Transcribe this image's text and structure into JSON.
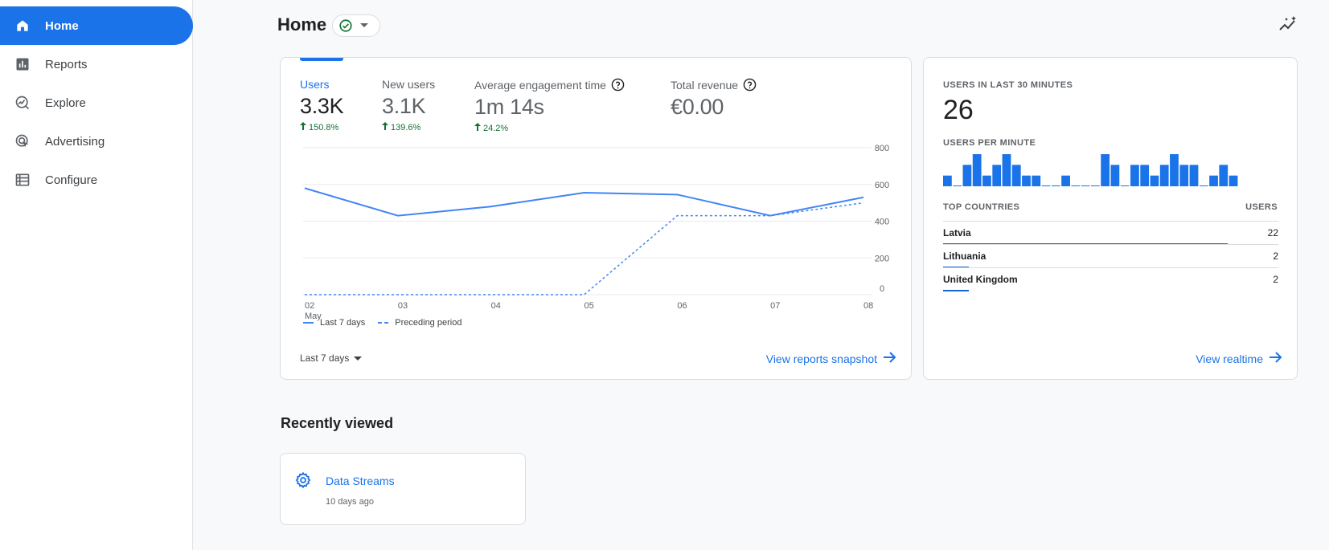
{
  "sidebar": {
    "items": [
      {
        "label": "Home",
        "icon": "home-icon",
        "active": true
      },
      {
        "label": "Reports",
        "icon": "bar-chart-icon",
        "active": false
      },
      {
        "label": "Explore",
        "icon": "explore-icon",
        "active": false
      },
      {
        "label": "Advertising",
        "icon": "advertising-icon",
        "active": false
      },
      {
        "label": "Configure",
        "icon": "configure-icon",
        "active": false
      }
    ]
  },
  "header": {
    "title": "Home",
    "status_icon": "check-circle-icon",
    "dropdown_icon": "caret-down-icon",
    "insights_icon": "insights-icon"
  },
  "overview": {
    "metrics": [
      {
        "label": "Users",
        "value": "3.3K",
        "change": "150.8%",
        "selected": true
      },
      {
        "label": "New users",
        "value": "3.1K",
        "change": "139.6%",
        "selected": false
      },
      {
        "label": "Average engagement time",
        "value": "1m 14s",
        "change": "24.2%",
        "help": true,
        "selected": false
      },
      {
        "label": "Total revenue",
        "value": "€0.00",
        "help": true,
        "selected": false
      }
    ],
    "legend": {
      "current": "Last 7 days",
      "previous": "Preceding period"
    },
    "date_range": "Last 7 days",
    "link": "View reports snapshot"
  },
  "chart_data": {
    "type": "line",
    "x": [
      "02",
      "03",
      "04",
      "05",
      "06",
      "07",
      "08"
    ],
    "x_sublabel": "May",
    "series": [
      {
        "name": "Last 7 days",
        "values": [
          580,
          430,
          480,
          555,
          545,
          430,
          530
        ]
      },
      {
        "name": "Preceding period",
        "values": [
          0,
          0,
          0,
          0,
          430,
          430,
          500
        ]
      }
    ],
    "yticks": [
      0,
      200,
      400,
      600,
      800
    ],
    "ylim": [
      0,
      800
    ],
    "grid": true,
    "colors": {
      "current": "#4285f4",
      "previous": "#4285f4"
    }
  },
  "realtime": {
    "users_label": "USERS IN LAST 30 MINUTES",
    "users_count": "26",
    "per_minute_label": "USERS PER MINUTE",
    "per_minute": [
      1,
      0,
      2,
      3,
      1,
      2,
      3,
      2,
      1,
      1,
      0,
      0,
      1,
      0,
      0,
      0,
      3,
      2,
      0,
      2,
      2,
      1,
      2,
      3,
      2,
      2,
      0,
      1,
      2,
      1
    ],
    "countries_header": "TOP COUNTRIES",
    "users_header": "USERS",
    "countries": [
      {
        "name": "Latvia",
        "value": "22",
        "share": 0.85
      },
      {
        "name": "Lithuania",
        "value": "2",
        "share": 0.077
      },
      {
        "name": "United Kingdom",
        "value": "2",
        "share": 0.077
      }
    ],
    "link": "View realtime"
  },
  "recently_viewed": {
    "title": "Recently viewed",
    "items": [
      {
        "title": "Data Streams",
        "subtitle": "10 days ago",
        "icon": "gear-icon"
      }
    ]
  },
  "colors": {
    "accent": "#1a73e8",
    "positive": "#137333"
  }
}
